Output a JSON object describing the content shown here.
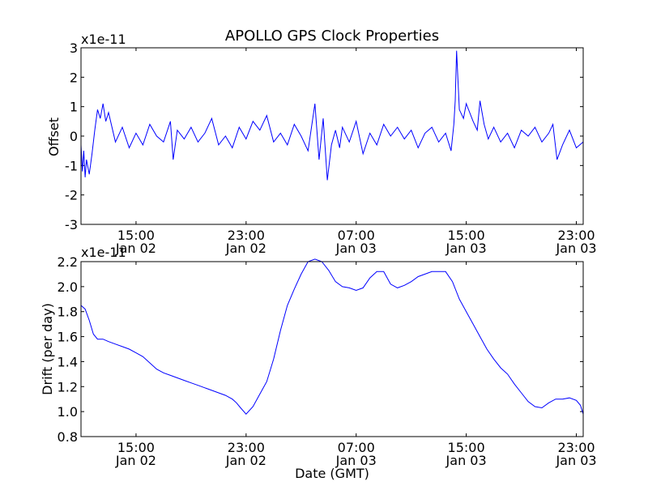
{
  "figure": {
    "title": "APOLLO GPS Clock Properties"
  },
  "chart_data": [
    {
      "type": "line",
      "name": "offset-panel",
      "ylabel": "Offset",
      "xlabel": "",
      "y_multiplier": "x1e-11",
      "x_domain_hours": [
        11.0,
        47.5
      ],
      "ylim": [
        -3,
        3
      ],
      "yticks": [
        "3",
        "2",
        "1",
        "0",
        "-1",
        "-2",
        "-3"
      ],
      "ytick_values": [
        3,
        2,
        1,
        0,
        -1,
        -2,
        -3
      ],
      "xticks": [
        {
          "time": "15:00",
          "date": "Jan 02",
          "hour": 15
        },
        {
          "time": "23:00",
          "date": "Jan 02",
          "hour": 23
        },
        {
          "time": "07:00",
          "date": "Jan 03",
          "hour": 31
        },
        {
          "time": "15:00",
          "date": "Jan 03",
          "hour": 39
        },
        {
          "time": "23:00",
          "date": "Jan 03",
          "hour": 47
        }
      ],
      "color": "#0000ff",
      "series": [
        {
          "x": [
            11.0,
            11.1,
            11.2,
            11.3,
            11.4,
            11.6,
            11.8,
            12.0,
            12.2,
            12.4,
            12.6,
            12.8,
            13.0,
            13.5,
            14.0,
            14.5,
            15.0,
            15.5,
            16.0,
            16.5,
            17.0,
            17.5,
            17.7,
            18.0,
            18.5,
            19.0,
            19.5,
            20.0,
            20.5,
            21.0,
            21.5,
            22.0,
            22.5,
            23.0,
            23.5,
            24.0,
            24.5,
            25.0,
            25.5,
            26.0,
            26.5,
            27.0,
            27.5,
            28.0,
            28.3,
            28.6,
            28.9,
            29.2,
            29.5,
            29.8,
            30.0,
            30.5,
            31.0,
            31.5,
            32.0,
            32.5,
            33.0,
            33.5,
            34.0,
            34.5,
            35.0,
            35.5,
            36.0,
            36.5,
            37.0,
            37.5,
            37.9,
            38.1,
            38.2,
            38.3,
            38.5,
            38.8,
            39.0,
            39.5,
            39.8,
            40.0,
            40.3,
            40.6,
            41.0,
            41.5,
            42.0,
            42.5,
            43.0,
            43.5,
            44.0,
            44.5,
            45.0,
            45.3,
            45.6,
            46.0,
            46.5,
            47.0,
            47.5
          ],
          "y": [
            -0.3,
            -1.2,
            -0.5,
            -1.4,
            -0.8,
            -1.3,
            -0.6,
            0.2,
            0.9,
            0.6,
            1.1,
            0.5,
            0.8,
            -0.2,
            0.3,
            -0.4,
            0.1,
            -0.3,
            0.4,
            0.0,
            -0.2,
            0.5,
            -0.8,
            0.2,
            -0.1,
            0.3,
            -0.2,
            0.1,
            0.6,
            -0.3,
            0.0,
            -0.4,
            0.3,
            -0.1,
            0.5,
            0.2,
            0.7,
            -0.2,
            0.1,
            -0.3,
            0.4,
            0.0,
            -0.5,
            1.1,
            -0.8,
            0.6,
            -1.5,
            -0.3,
            0.2,
            -0.4,
            0.3,
            -0.2,
            0.5,
            -0.6,
            0.1,
            -0.3,
            0.4,
            0.0,
            0.3,
            -0.1,
            0.2,
            -0.4,
            0.1,
            0.3,
            -0.2,
            0.1,
            -0.5,
            0.4,
            1.2,
            2.9,
            0.9,
            0.6,
            1.1,
            0.5,
            0.2,
            1.2,
            0.4,
            -0.1,
            0.3,
            -0.2,
            0.1,
            -0.4,
            0.2,
            0.0,
            0.3,
            -0.2,
            0.1,
            0.4,
            -0.8,
            -0.3,
            0.2,
            -0.4,
            -0.2
          ]
        }
      ]
    },
    {
      "type": "line",
      "name": "drift-panel",
      "ylabel": "Drift (per day)",
      "xlabel": "Date (GMT)",
      "y_multiplier": "x1e-11",
      "x_domain_hours": [
        11.0,
        47.5
      ],
      "ylim": [
        0.8,
        2.2
      ],
      "yticks": [
        "2.2",
        "2.0",
        "1.8",
        "1.6",
        "1.4",
        "1.2",
        "1.0",
        "0.8"
      ],
      "ytick_values": [
        2.2,
        2.0,
        1.8,
        1.6,
        1.4,
        1.2,
        1.0,
        0.8
      ],
      "xticks": [
        {
          "time": "15:00",
          "date": "Jan 02",
          "hour": 15
        },
        {
          "time": "23:00",
          "date": "Jan 02",
          "hour": 23
        },
        {
          "time": "07:00",
          "date": "Jan 03",
          "hour": 31
        },
        {
          "time": "15:00",
          "date": "Jan 03",
          "hour": 39
        },
        {
          "time": "23:00",
          "date": "Jan 03",
          "hour": 47
        }
      ],
      "color": "#0000ff",
      "series": [
        {
          "x": [
            11.0,
            11.3,
            11.6,
            11.9,
            12.2,
            12.6,
            13.0,
            13.5,
            14.0,
            14.5,
            15.0,
            15.5,
            16.0,
            16.5,
            17.0,
            17.5,
            18.0,
            18.5,
            19.0,
            19.5,
            20.0,
            20.5,
            21.0,
            21.5,
            22.0,
            22.3,
            22.6,
            23.0,
            23.5,
            24.0,
            24.5,
            25.0,
            25.5,
            26.0,
            26.5,
            27.0,
            27.5,
            28.0,
            28.5,
            29.0,
            29.5,
            30.0,
            30.5,
            31.0,
            31.5,
            32.0,
            32.5,
            33.0,
            33.5,
            34.0,
            34.5,
            35.0,
            35.5,
            36.0,
            36.5,
            37.0,
            37.5,
            38.0,
            38.5,
            39.0,
            39.5,
            40.0,
            40.5,
            41.0,
            41.5,
            42.0,
            42.5,
            43.0,
            43.5,
            44.0,
            44.5,
            45.0,
            45.5,
            46.0,
            46.5,
            47.0,
            47.3,
            47.5
          ],
          "y": [
            1.85,
            1.82,
            1.73,
            1.62,
            1.58,
            1.58,
            1.56,
            1.54,
            1.52,
            1.5,
            1.47,
            1.44,
            1.39,
            1.34,
            1.31,
            1.29,
            1.27,
            1.25,
            1.23,
            1.21,
            1.19,
            1.17,
            1.15,
            1.13,
            1.1,
            1.07,
            1.03,
            0.98,
            1.04,
            1.14,
            1.24,
            1.42,
            1.65,
            1.85,
            1.98,
            2.1,
            2.2,
            2.22,
            2.2,
            2.13,
            2.04,
            2.0,
            1.99,
            1.97,
            1.99,
            2.07,
            2.12,
            2.12,
            2.02,
            1.99,
            2.01,
            2.04,
            2.08,
            2.1,
            2.12,
            2.12,
            2.12,
            2.04,
            1.9,
            1.8,
            1.7,
            1.6,
            1.5,
            1.42,
            1.35,
            1.3,
            1.22,
            1.15,
            1.08,
            1.04,
            1.03,
            1.07,
            1.1,
            1.1,
            1.11,
            1.09,
            1.05,
            0.98
          ]
        }
      ]
    }
  ]
}
